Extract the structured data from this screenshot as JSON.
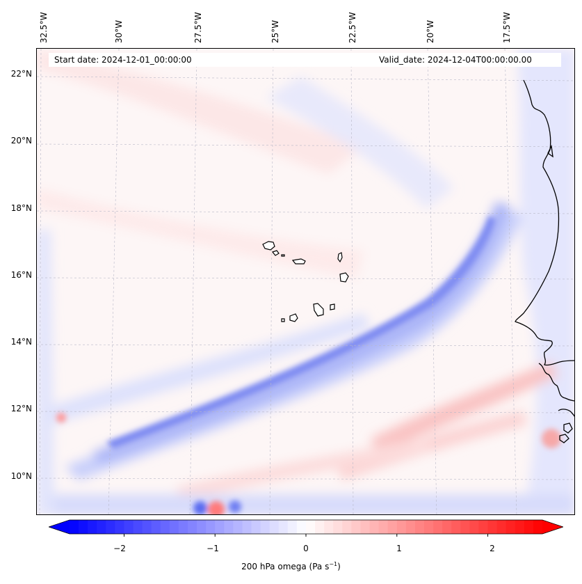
{
  "map": {
    "start_date_text": "Start date: 2024-12-01_00:00:00",
    "valid_date_text": "Valid_date: 2024-12-04T00:00:00.00",
    "longitude_labels": [
      "32.5°W",
      "30°W",
      "27.5°W",
      "25°W",
      "22.5°W",
      "20°W",
      "17.5°W"
    ],
    "latitude_labels": [
      "22°N",
      "20°N",
      "18°N",
      "16°N",
      "14°N",
      "12°N",
      "10°N"
    ],
    "field": "200 hPa omega",
    "lon_range": [
      -33.0,
      -16.0
    ],
    "lat_range": [
      8.9,
      22.8
    ],
    "gridlines": true
  },
  "colorbar": {
    "label_prefix": "200 hPa omega (Pa s",
    "label_exponent": "−1",
    "label_suffix": ")",
    "tick_labels": [
      "−2",
      "−1",
      "0",
      "1",
      "2"
    ],
    "tick_values": [
      -2,
      -1,
      0,
      1,
      2
    ],
    "range": [
      -2.6,
      2.6
    ],
    "negative_color": "#0000ff",
    "positive_color": "#ff0000",
    "extend": "both"
  }
}
